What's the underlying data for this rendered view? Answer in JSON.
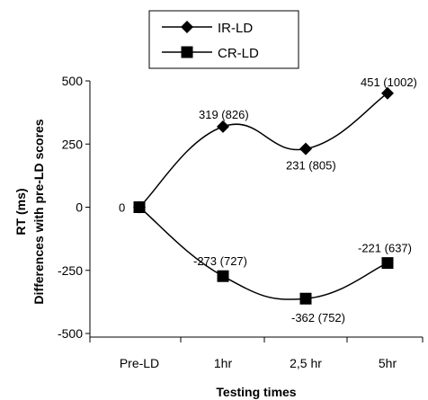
{
  "chart_data": {
    "type": "line",
    "categories": [
      "Pre-LD",
      "1hr",
      "2,5 hr",
      "5hr"
    ],
    "ylim": [
      -500,
      500
    ],
    "yticks": [
      -500,
      -250,
      0,
      250,
      500
    ],
    "ytick_labels": [
      "-500",
      "-250",
      "0",
      "250",
      "500"
    ],
    "xlabel": "Testing times",
    "ylabel_lines": [
      "RT (ms)",
      "Differences with pre-LD scores"
    ],
    "grid": false,
    "legend_position": "top-center",
    "series": [
      {
        "name": "IR-LD",
        "marker": "diamond",
        "color": "#000000",
        "values": [
          0,
          319,
          231,
          451
        ],
        "labels": [
          "",
          "319 (826)",
          "231 (805)",
          "451 (1002)"
        ]
      },
      {
        "name": "CR-LD",
        "marker": "square",
        "color": "#000000",
        "values": [
          0,
          -273,
          -362,
          -221
        ],
        "labels": [
          "",
          "-273 (727)",
          "-362 (752)",
          "-221 (637)"
        ]
      }
    ],
    "extra_labels": [
      {
        "category": "Pre-LD",
        "value": 0,
        "text": "0"
      }
    ]
  }
}
